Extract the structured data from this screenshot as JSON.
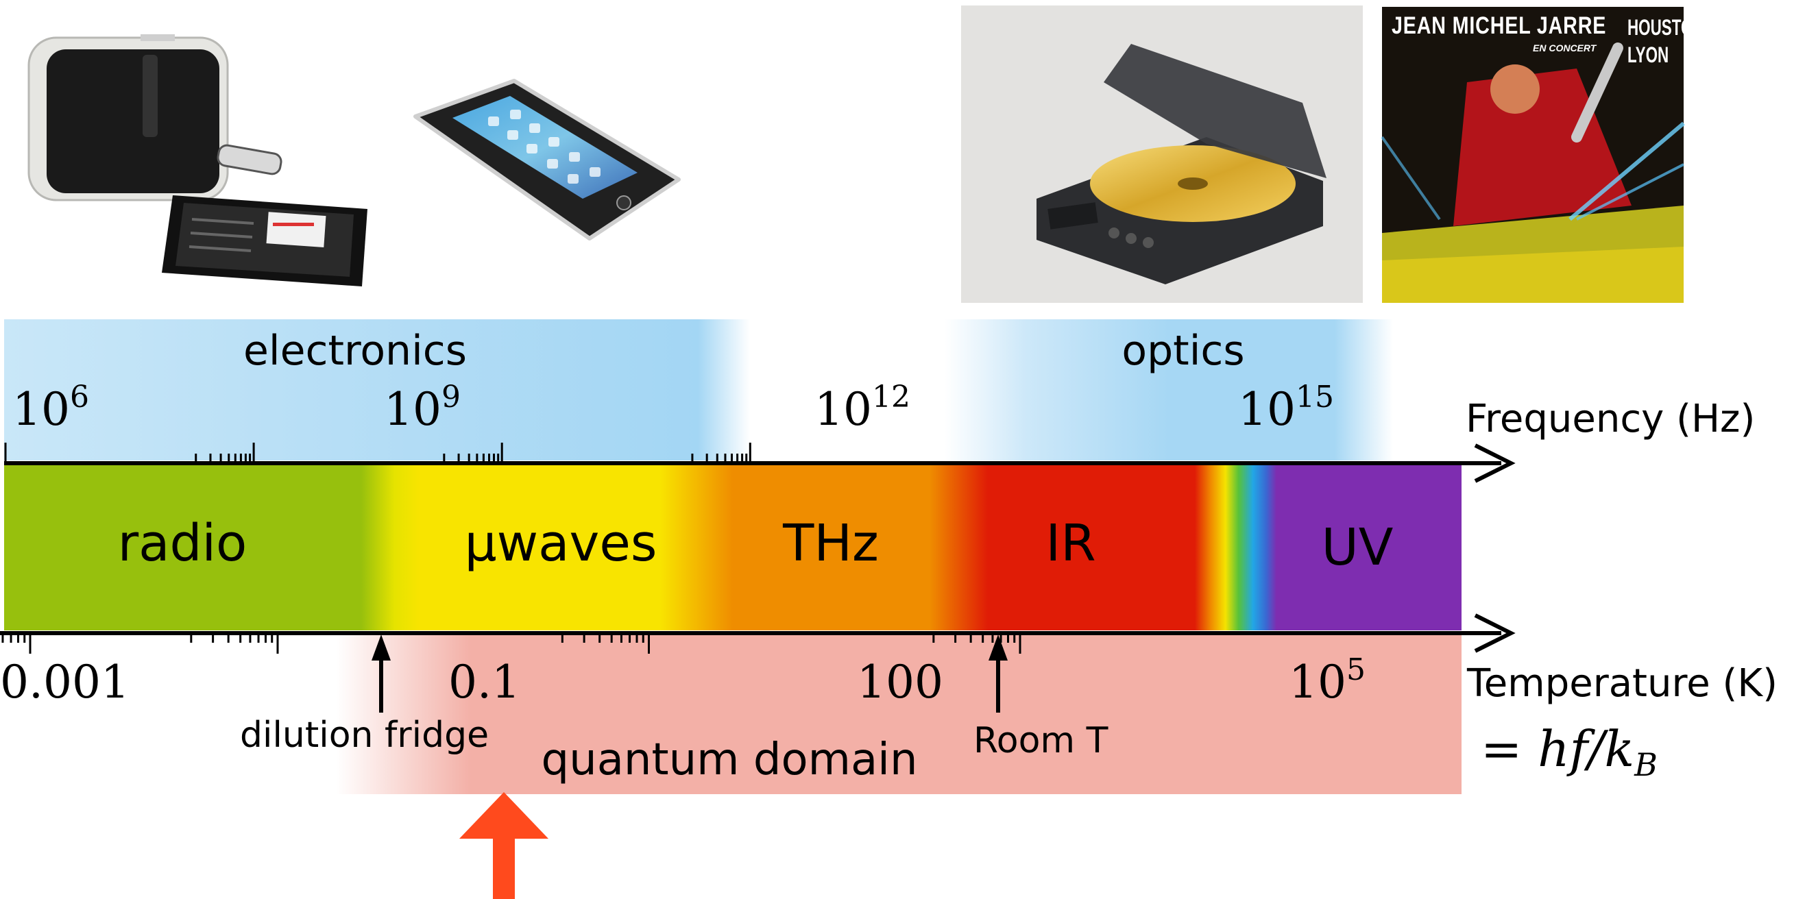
{
  "scales": {
    "frequency": {
      "label": "Frequency (Hz)",
      "ticks": [
        {
          "base": "10",
          "exp": "6"
        },
        {
          "base": "10",
          "exp": "9"
        },
        {
          "base": "10",
          "exp": "12"
        },
        {
          "base": "10",
          "exp": "15"
        }
      ]
    },
    "temperature": {
      "label": "Temperature (K)",
      "relation": "= hf/k",
      "relation_subscript": "B",
      "ticks": [
        "0.001",
        "0.1",
        "100"
      ],
      "tick_pow": {
        "base": "10",
        "exp": "5"
      }
    }
  },
  "domains": {
    "electronics": "electronics",
    "optics": "optics",
    "quantum": "quantum domain"
  },
  "bands": [
    "radio",
    "μwaves",
    "THz",
    "IR",
    "UV"
  ],
  "markers": {
    "dilution_fridge": "dilution fridge",
    "room_t": "Room T"
  },
  "album": {
    "artist": "JEAN MICHEL JARRE",
    "subtitle": "EN CONCERT",
    "cities": [
      "HOUSTON",
      "LYON"
    ]
  },
  "colors": {
    "radio": "#97c00d",
    "microwaves": "#f8e300",
    "thz": "#ef8d00",
    "ir": "#e01c06",
    "uv": "#7e2db0",
    "domain_blue": "#a8d8f5",
    "quantum_pink": "#f3b0a7",
    "highlight_arrow": "#ff4a1d"
  }
}
